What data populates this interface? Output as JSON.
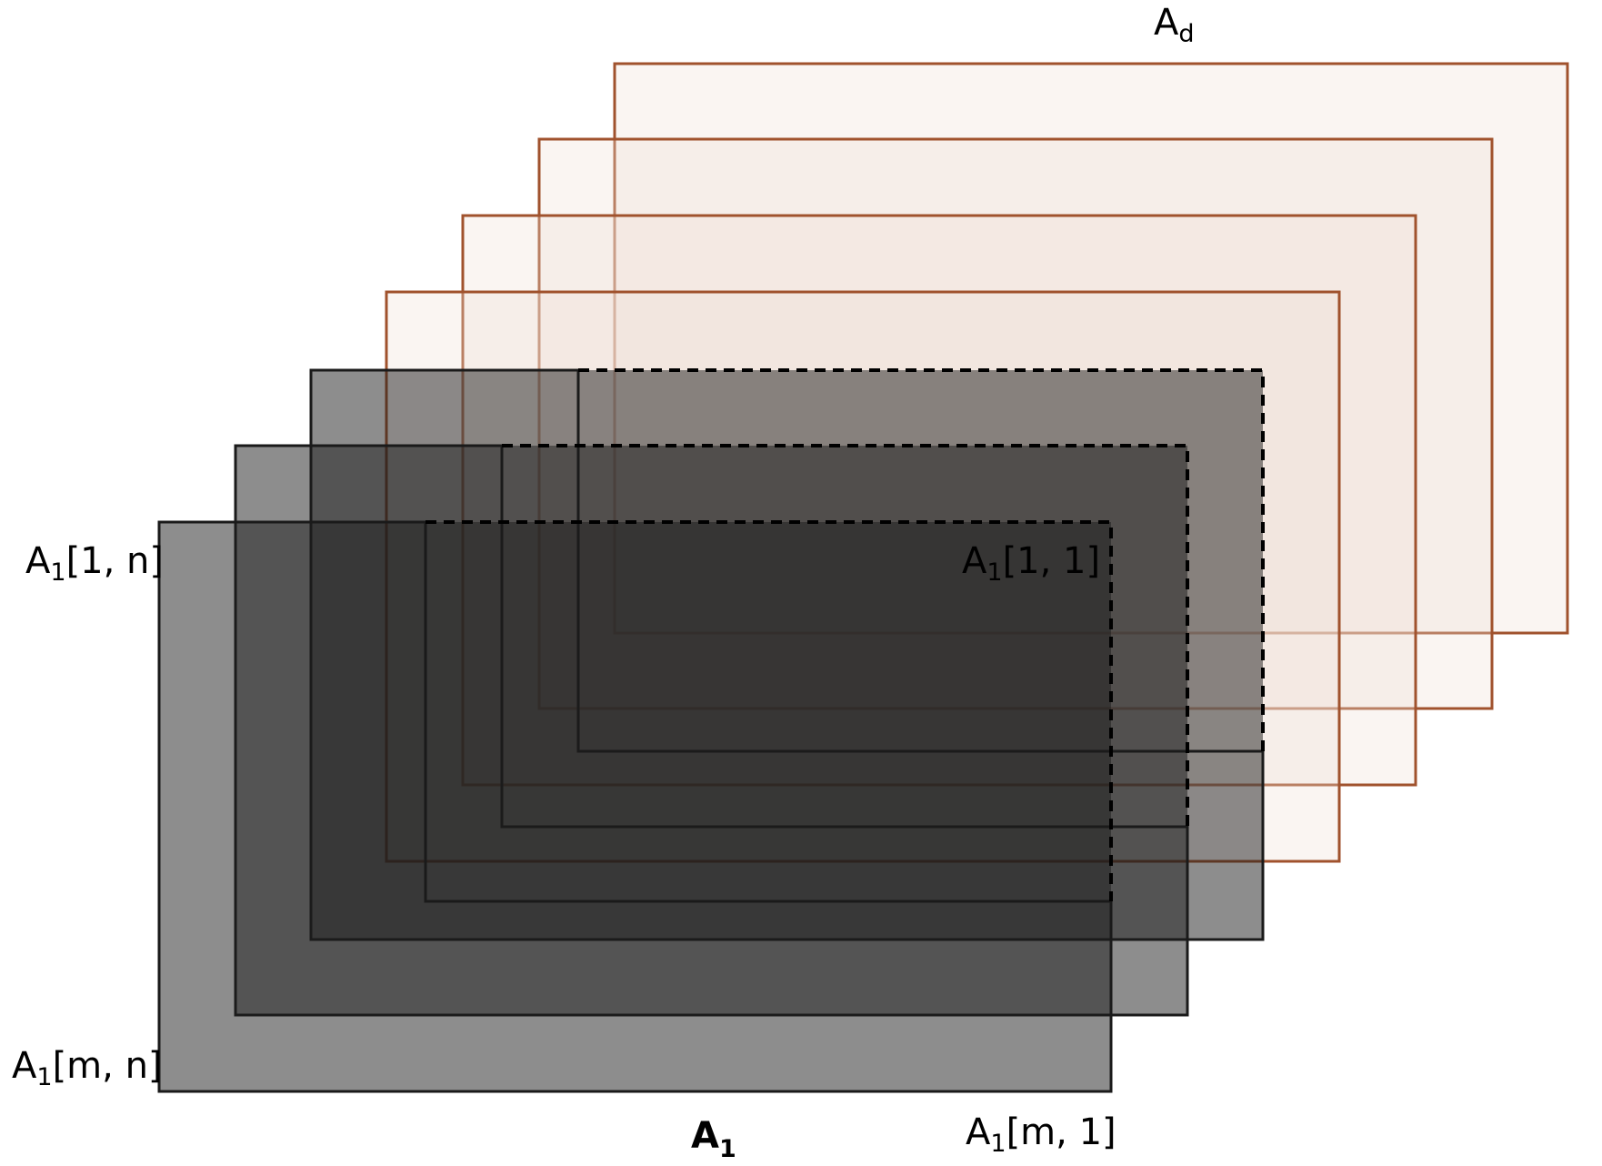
{
  "labels": {
    "top_layer": {
      "base": "A",
      "sub": "d"
    },
    "corner_top_left": {
      "base": "A",
      "sub": "1",
      "index": "[1, n]"
    },
    "corner_top_right": {
      "base": "A",
      "sub": "1",
      "index": "[1, 1]"
    },
    "corner_bottom_left": {
      "base": "A",
      "sub": "1",
      "index": "[m, n]"
    },
    "corner_bottom_right": {
      "base": "A",
      "sub": "1",
      "index": "[m, 1]"
    },
    "front_layer": {
      "base": "A",
      "sub": "1"
    }
  },
  "colors": {
    "back_layer_fill": "#f1dfd7",
    "back_layer_stroke": "#a0522d",
    "front_layer_fill": "#1c1c1c",
    "front_layer_stroke": "#1a1a1a",
    "hidden_edge": "#000000"
  }
}
